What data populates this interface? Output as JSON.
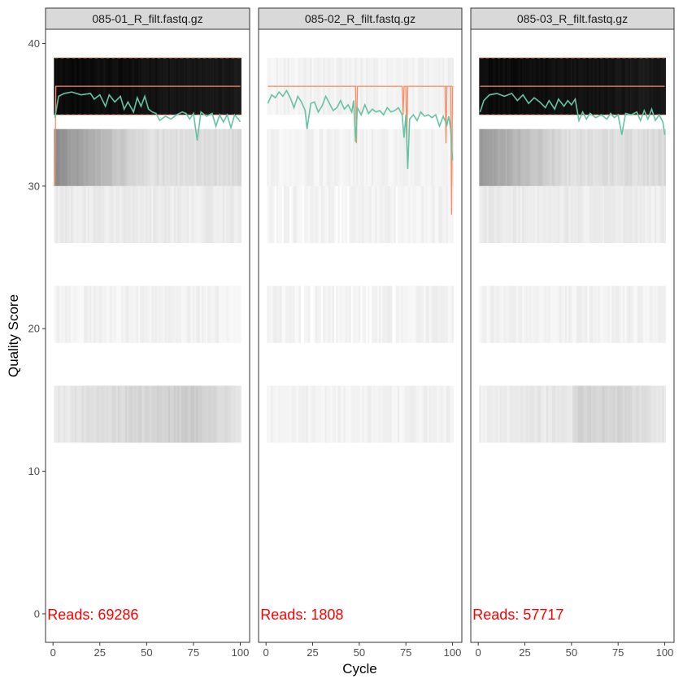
{
  "chart_data": {
    "type": "heatmap",
    "title": "",
    "xlabel": "Cycle",
    "ylabel": "Quality Score",
    "xlim": [
      -4,
      105
    ],
    "ylim": [
      -2,
      41
    ],
    "x_ticks": [
      0,
      25,
      50,
      75,
      100
    ],
    "y_ticks": [
      0,
      10,
      20,
      30,
      40
    ],
    "grid": false,
    "colors": {
      "mean_line": "#66c2a5",
      "median_line": "#fc8d62",
      "quartile_line": "#fc8d62",
      "reads_text": "#ff0000",
      "strip_fill": "#d9d9d9",
      "panel_border": "#333333"
    },
    "quality_bands": [
      {
        "q_low": 35,
        "q_high": 39
      },
      {
        "q_low": 30,
        "q_high": 34
      },
      {
        "q_low": 26,
        "q_high": 30
      },
      {
        "q_low": 19,
        "q_high": 23
      },
      {
        "q_low": 12,
        "q_high": 16
      }
    ],
    "panels": [
      {
        "file": "085-01_R_filt.fastq.gz",
        "reads_label": "Reads:  69286",
        "band_profiles": [
          [
            {
              "x": 1,
              "v": 0.96
            },
            {
              "x": 30,
              "v": 0.95
            },
            {
              "x": 55,
              "v": 0.93
            },
            {
              "x": 75,
              "v": 0.92
            },
            {
              "x": 100,
              "v": 0.9
            }
          ],
          [
            {
              "x": 1,
              "v": 0.45
            },
            {
              "x": 50,
              "v": 0.12
            },
            {
              "x": 100,
              "v": 0.14
            }
          ],
          [
            {
              "x": 1,
              "v": 0.08
            },
            {
              "x": 100,
              "v": 0.07
            }
          ],
          [
            {
              "x": 1,
              "v": 0.05
            },
            {
              "x": 100,
              "v": 0.05
            }
          ],
          [
            {
              "x": 1,
              "v": 0.08
            },
            {
              "x": 20,
              "v": 0.12
            },
            {
              "x": 50,
              "v": 0.16
            },
            {
              "x": 78,
              "v": 0.2
            },
            {
              "x": 100,
              "v": 0.1
            }
          ]
        ],
        "gaps": [],
        "mean": [
          [
            1,
            34.8
          ],
          [
            3,
            36.3
          ],
          [
            6,
            36.5
          ],
          [
            10,
            36.6
          ],
          [
            15,
            36.4
          ],
          [
            20,
            36.5
          ],
          [
            22,
            36.1
          ],
          [
            25,
            36.4
          ],
          [
            28,
            35.6
          ],
          [
            30,
            36.4
          ],
          [
            33,
            35.9
          ],
          [
            36,
            36.3
          ],
          [
            38,
            35.4
          ],
          [
            40,
            35.9
          ],
          [
            43,
            35.2
          ],
          [
            45,
            36.2
          ],
          [
            47,
            35.6
          ],
          [
            49,
            36.3
          ],
          [
            51,
            35.4
          ],
          [
            53,
            35.2
          ],
          [
            55,
            35.1
          ],
          [
            57,
            34.6
          ],
          [
            60,
            34.9
          ],
          [
            63,
            34.7
          ],
          [
            66,
            35.0
          ],
          [
            69,
            35.2
          ],
          [
            71,
            35.1
          ],
          [
            73,
            34.7
          ],
          [
            75,
            35.1
          ],
          [
            77,
            33.2
          ],
          [
            79,
            35.2
          ],
          [
            82,
            34.9
          ],
          [
            85,
            35.1
          ],
          [
            87,
            34.2
          ],
          [
            89,
            35.0
          ],
          [
            91,
            34.5
          ],
          [
            93,
            35.0
          ],
          [
            95,
            34.1
          ],
          [
            97,
            35.0
          ],
          [
            99,
            34.7
          ],
          [
            100,
            34.5
          ]
        ],
        "median": [
          [
            1,
            30
          ],
          [
            1.5,
            37
          ],
          [
            100,
            37
          ]
        ],
        "q25": [
          [
            1,
            35
          ],
          [
            100,
            35
          ]
        ],
        "q75": [
          [
            1,
            39
          ],
          [
            100,
            39
          ]
        ]
      },
      {
        "file": "085-02_R_filt.fastq.gz",
        "reads_label": "Reads:  1808",
        "band_profiles": [
          [
            {
              "x": 1,
              "v": 0.05
            },
            {
              "x": 100,
              "v": 0.05
            }
          ],
          [
            {
              "x": 1,
              "v": 0.05
            },
            {
              "x": 100,
              "v": 0.05
            }
          ],
          [
            {
              "x": 1,
              "v": 0.05
            },
            {
              "x": 100,
              "v": 0.05
            }
          ],
          [
            {
              "x": 1,
              "v": 0.05
            },
            {
              "x": 100,
              "v": 0.05
            }
          ],
          [
            {
              "x": 1,
              "v": 0.05
            },
            {
              "x": 100,
              "v": 0.05
            }
          ]
        ],
        "gaps": [
          {
            "band": 2,
            "x": [
              5,
              9,
              13,
              20,
              38,
              40,
              44,
              70
            ]
          },
          {
            "band": 3,
            "x": [
              19,
              20,
              24,
              25,
              30,
              37,
              46,
              51,
              54,
              56,
              68,
              69
            ]
          }
        ],
        "mean": [
          [
            1,
            35.8
          ],
          [
            3,
            36.4
          ],
          [
            5,
            36.2
          ],
          [
            7,
            36.6
          ],
          [
            9,
            36.3
          ],
          [
            11,
            36.7
          ],
          [
            13,
            36.2
          ],
          [
            15,
            35.5
          ],
          [
            17,
            36.3
          ],
          [
            19,
            35.9
          ],
          [
            21,
            35.3
          ],
          [
            22,
            34.0
          ],
          [
            24,
            35.8
          ],
          [
            26,
            35.9
          ],
          [
            28,
            35.2
          ],
          [
            30,
            35.6
          ],
          [
            32,
            36.3
          ],
          [
            34,
            35.8
          ],
          [
            36,
            35.3
          ],
          [
            38,
            35.5
          ],
          [
            40,
            36.0
          ],
          [
            42,
            35.4
          ],
          [
            44,
            35.7
          ],
          [
            46,
            35.2
          ],
          [
            47,
            36.0
          ],
          [
            48,
            33.1
          ],
          [
            49,
            35.5
          ],
          [
            51,
            35.0
          ],
          [
            53,
            35.7
          ],
          [
            55,
            35.1
          ],
          [
            57,
            35.4
          ],
          [
            59,
            35.2
          ],
          [
            61,
            35.3
          ],
          [
            63,
            35.0
          ],
          [
            65,
            35.5
          ],
          [
            67,
            35.2
          ],
          [
            69,
            35.3
          ],
          [
            71,
            35.5
          ],
          [
            73,
            35.0
          ],
          [
            74,
            33.4
          ],
          [
            75,
            35.0
          ],
          [
            76,
            31.2
          ],
          [
            77,
            34.7
          ],
          [
            79,
            35.0
          ],
          [
            81,
            34.6
          ],
          [
            83,
            35.2
          ],
          [
            85,
            34.9
          ],
          [
            87,
            35.0
          ],
          [
            89,
            34.8
          ],
          [
            91,
            35.0
          ],
          [
            93,
            34.2
          ],
          [
            95,
            34.9
          ],
          [
            97,
            34.3
          ],
          [
            98,
            34.9
          ],
          [
            99,
            34.0
          ],
          [
            100,
            31.8
          ]
        ],
        "median": [
          [
            1,
            37
          ],
          [
            48,
            37
          ],
          [
            48.5,
            33
          ],
          [
            49,
            37
          ],
          [
            73,
            37
          ],
          [
            73.5,
            35
          ],
          [
            74,
            37
          ],
          [
            75,
            37
          ],
          [
            75.5,
            33
          ],
          [
            76,
            37
          ],
          [
            96,
            37
          ],
          [
            96.5,
            33
          ],
          [
            97,
            37
          ],
          [
            99,
            37
          ],
          [
            99.5,
            28
          ],
          [
            100,
            37
          ]
        ],
        "q25": [
          [
            1,
            37
          ],
          [
            100,
            37
          ]
        ],
        "q75": [
          [
            1,
            37
          ],
          [
            100,
            37
          ]
        ]
      },
      {
        "file": "085-03_R_filt.fastq.gz",
        "reads_label": "Reads:  57717",
        "band_profiles": [
          [
            {
              "x": 1,
              "v": 0.96
            },
            {
              "x": 30,
              "v": 0.95
            },
            {
              "x": 55,
              "v": 0.93
            },
            {
              "x": 75,
              "v": 0.92
            },
            {
              "x": 100,
              "v": 0.9
            }
          ],
          [
            {
              "x": 1,
              "v": 0.4
            },
            {
              "x": 50,
              "v": 0.12
            },
            {
              "x": 100,
              "v": 0.14
            }
          ],
          [
            {
              "x": 1,
              "v": 0.08
            },
            {
              "x": 100,
              "v": 0.07
            }
          ],
          [
            {
              "x": 1,
              "v": 0.05
            },
            {
              "x": 100,
              "v": 0.05
            }
          ],
          [
            {
              "x": 1,
              "v": 0.06
            },
            {
              "x": 50,
              "v": 0.1
            },
            {
              "x": 55,
              "v": 0.18
            },
            {
              "x": 78,
              "v": 0.16
            },
            {
              "x": 100,
              "v": 0.1
            }
          ]
        ],
        "gaps": [],
        "mean": [
          [
            1,
            35.2
          ],
          [
            3,
            36.0
          ],
          [
            6,
            36.4
          ],
          [
            10,
            36.5
          ],
          [
            14,
            36.3
          ],
          [
            18,
            36.5
          ],
          [
            21,
            36.0
          ],
          [
            24,
            36.4
          ],
          [
            27,
            35.8
          ],
          [
            30,
            36.2
          ],
          [
            33,
            35.9
          ],
          [
            36,
            35.5
          ],
          [
            38,
            36.0
          ],
          [
            41,
            35.4
          ],
          [
            43,
            36.1
          ],
          [
            46,
            35.6
          ],
          [
            48,
            36.0
          ],
          [
            50,
            35.7
          ],
          [
            52,
            36.1
          ],
          [
            54,
            34.6
          ],
          [
            56,
            35.2
          ],
          [
            58,
            34.7
          ],
          [
            60,
            35.1
          ],
          [
            63,
            34.8
          ],
          [
            66,
            35.0
          ],
          [
            69,
            34.7
          ],
          [
            71,
            35.1
          ],
          [
            73,
            34.8
          ],
          [
            75,
            35.0
          ],
          [
            77,
            33.6
          ],
          [
            79,
            35.1
          ],
          [
            82,
            35.0
          ],
          [
            85,
            35.2
          ],
          [
            87,
            34.6
          ],
          [
            89,
            35.3
          ],
          [
            91,
            34.7
          ],
          [
            93,
            35.4
          ],
          [
            95,
            34.6
          ],
          [
            97,
            35.0
          ],
          [
            99,
            34.5
          ],
          [
            100,
            33.6
          ]
        ],
        "median": [
          [
            1,
            37
          ],
          [
            100,
            37
          ]
        ],
        "q25": [
          [
            1,
            35
          ],
          [
            100,
            35
          ]
        ],
        "q75": [
          [
            1,
            39
          ],
          [
            100,
            39
          ]
        ]
      }
    ]
  }
}
